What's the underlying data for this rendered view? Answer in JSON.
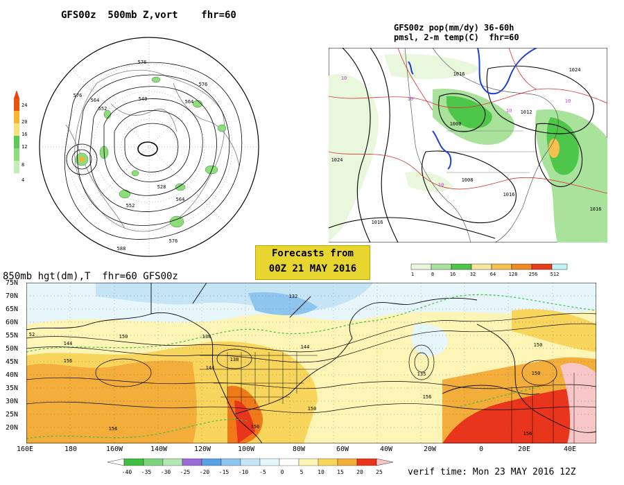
{
  "panels": {
    "polar": {
      "title": "GFS00z  500mb Z,vort    fhr=60",
      "colorbar": {
        "labels": [
          "24",
          "20",
          "16",
          "12",
          "8",
          "4"
        ],
        "colors": [
          "#e8540f",
          "#f6b431",
          "#f5e07a",
          "#5cc857",
          "#8fdc7d",
          "#c5ecba"
        ]
      },
      "contour_labels": [
        "576",
        "576",
        "576",
        "564",
        "564",
        "552",
        "540",
        "528",
        "552",
        "576",
        "588",
        "564"
      ]
    },
    "na": {
      "title_line1": "GFS00z pop(mm/dy) 36-60h",
      "title_line2": "pmsl, 2-m temp(C)  fhr=60",
      "colorbar": {
        "labels": [
          "1",
          "8",
          "16",
          "32",
          "64",
          "128",
          "256",
          "512"
        ],
        "colors": [
          "#e9f8dd",
          "#a9e39b",
          "#4dc64a",
          "#f6e7a0",
          "#f5c04f",
          "#ef8a23",
          "#e8401e",
          "#c0f0f8"
        ]
      },
      "isobar_labels": [
        "1016",
        "1024",
        "1012",
        "1000",
        "1008",
        "1016",
        "1024",
        "1016",
        "1016"
      ],
      "temp_labels": [
        "10",
        "10",
        "10",
        "10",
        "10"
      ]
    },
    "main": {
      "title": "850mb hgt(dm),T  fhr=60 GFS00z",
      "lat_labels": [
        "75N",
        "70N",
        "65N",
        "60N",
        "55N",
        "50N",
        "45N",
        "40N",
        "35N",
        "30N",
        "25N",
        "20N"
      ],
      "lon_labels": [
        "160E",
        "180",
        "160W",
        "140W",
        "120W",
        "100W",
        "80W",
        "60W",
        "40W",
        "20W",
        "0",
        "20E",
        "40E"
      ],
      "contour_labels": [
        "132",
        "138",
        "144",
        "150",
        "156",
        "144",
        "150",
        "138",
        "156",
        "150",
        "156",
        "144",
        "150",
        "156",
        "135",
        "150",
        "52"
      ],
      "colorbar": {
        "labels": [
          "-40",
          "-35",
          "-30",
          "-25",
          "-20",
          "-15",
          "-10",
          "-5",
          "0",
          "5",
          "10",
          "15",
          "20",
          "25"
        ],
        "colors": [
          "#3fbf3f",
          "#7dd27d",
          "#b5e6b5",
          "#9b6cd6",
          "#5aa3e3",
          "#8ec5ef",
          "#c5e5f6",
          "#e6f6fb",
          "#ffffff",
          "#fdf5b5",
          "#f8d65e",
          "#f2ad3a",
          "#f07a1a",
          "#e8351b"
        ]
      }
    }
  },
  "forecast_box": {
    "line1": "Forecasts from",
    "line2": "00Z 21 MAY 2016"
  },
  "verif": {
    "text": "verif time: Mon 23 MAY 2016 12Z"
  }
}
